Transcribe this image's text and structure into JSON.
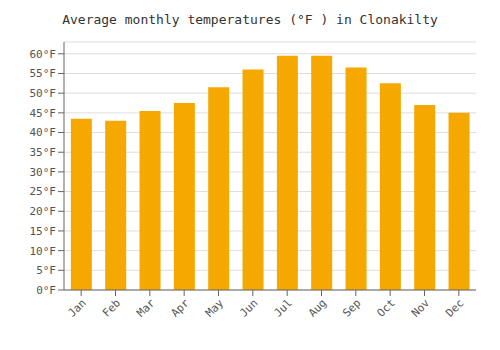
{
  "chart_data": {
    "type": "bar",
    "title": "Average monthly temperatures (°F ) in Clonakilty",
    "categories": [
      "Jan",
      "Feb",
      "Mar",
      "Apr",
      "May",
      "Jun",
      "Jul",
      "Aug",
      "Sep",
      "Oct",
      "Nov",
      "Dec"
    ],
    "values": [
      43.5,
      43.0,
      45.5,
      47.5,
      51.5,
      56.0,
      59.5,
      59.5,
      56.5,
      52.5,
      47.0,
      45.0
    ],
    "color": "#F5A800",
    "ylim": [
      0,
      63
    ],
    "yticks": [
      {
        "value": 0,
        "label": "0°F"
      },
      {
        "value": 5,
        "label": "5°F"
      },
      {
        "value": 10,
        "label": "10°F"
      },
      {
        "value": 15,
        "label": "15°F"
      },
      {
        "value": 20,
        "label": "20°F"
      },
      {
        "value": 25,
        "label": "25°F"
      },
      {
        "value": 30,
        "label": "30°F"
      },
      {
        "value": 35,
        "label": "35°F"
      },
      {
        "value": 40,
        "label": "40°F"
      },
      {
        "value": 45,
        "label": "45°F"
      },
      {
        "value": 50,
        "label": "50°F"
      },
      {
        "value": 55,
        "label": "55°F"
      },
      {
        "value": 60,
        "label": "60°F"
      }
    ],
    "grid": true
  }
}
